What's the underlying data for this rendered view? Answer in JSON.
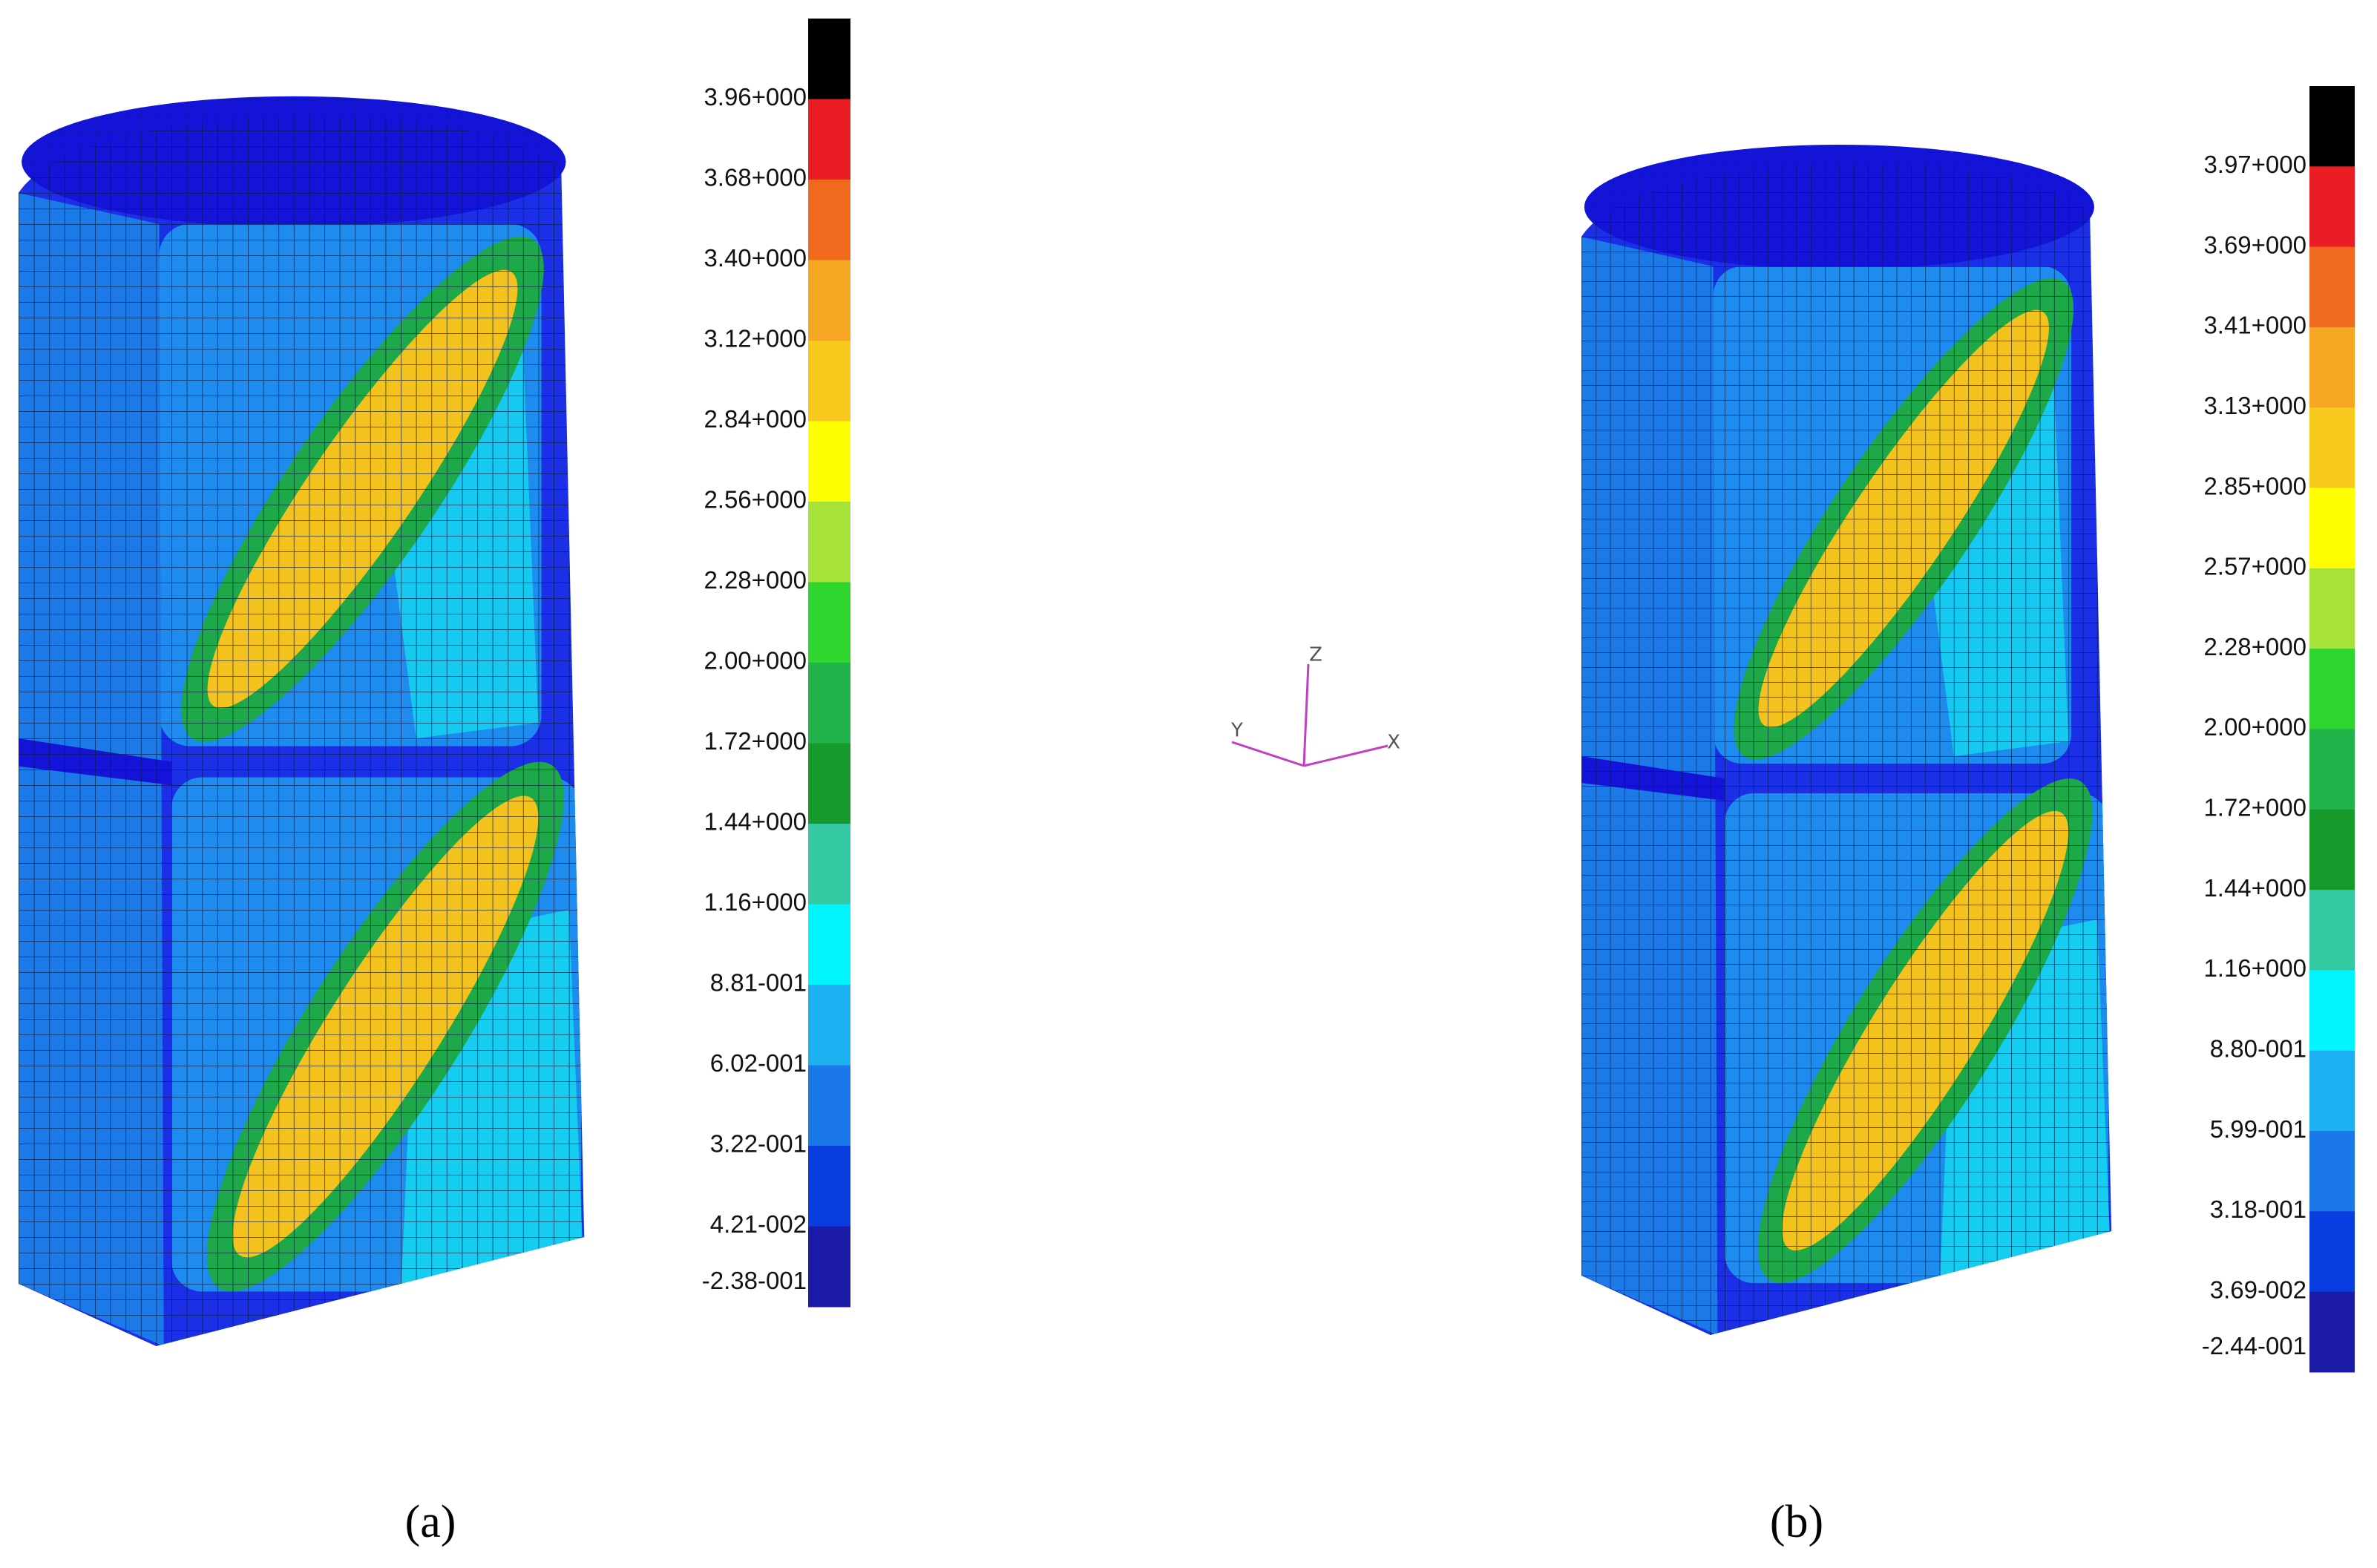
{
  "panels": [
    {
      "caption": "(a)",
      "colorbar": {
        "labels": [
          "3.96+000",
          "3.68+000",
          "3.40+000",
          "3.12+000",
          "2.84+000",
          "2.56+000",
          "2.28+000",
          "2.00+000",
          "1.72+000",
          "1.44+000",
          "1.16+000",
          "8.81-001",
          "6.02-001",
          "3.22-001",
          "4.21-002",
          "-2.38-001"
        ],
        "colors": [
          "#000000",
          "#ea1c24",
          "#f06a1e",
          "#f5a623",
          "#f8c91c",
          "#ffff00",
          "#a6e23a",
          "#2fd52f",
          "#22b34a",
          "#169a2c",
          "#33c9a2",
          "#00f5ff",
          "#1cb0f0",
          "#1a78e8",
          "#0a3de0",
          "#1a1aa6"
        ]
      }
    },
    {
      "caption": "(b)",
      "colorbar": {
        "labels": [
          "3.97+000",
          "3.69+000",
          "3.41+000",
          "3.13+000",
          "2.85+000",
          "2.57+000",
          "2.28+000",
          "2.00+000",
          "1.72+000",
          "1.44+000",
          "1.16+000",
          "8.80-001",
          "5.99-001",
          "3.18-001",
          "3.69-002",
          "-2.44-001"
        ],
        "colors": [
          "#000000",
          "#ea1c24",
          "#f06a1e",
          "#f5a623",
          "#f8c91c",
          "#ffff00",
          "#a6e23a",
          "#2fd52f",
          "#22b34a",
          "#169a2c",
          "#33c9a2",
          "#00f5ff",
          "#1cb0f0",
          "#1a78e8",
          "#0a3de0",
          "#1a1aa6"
        ]
      }
    }
  ],
  "axis_triad": {
    "z": "Z",
    "y": "Y",
    "x": "X"
  }
}
